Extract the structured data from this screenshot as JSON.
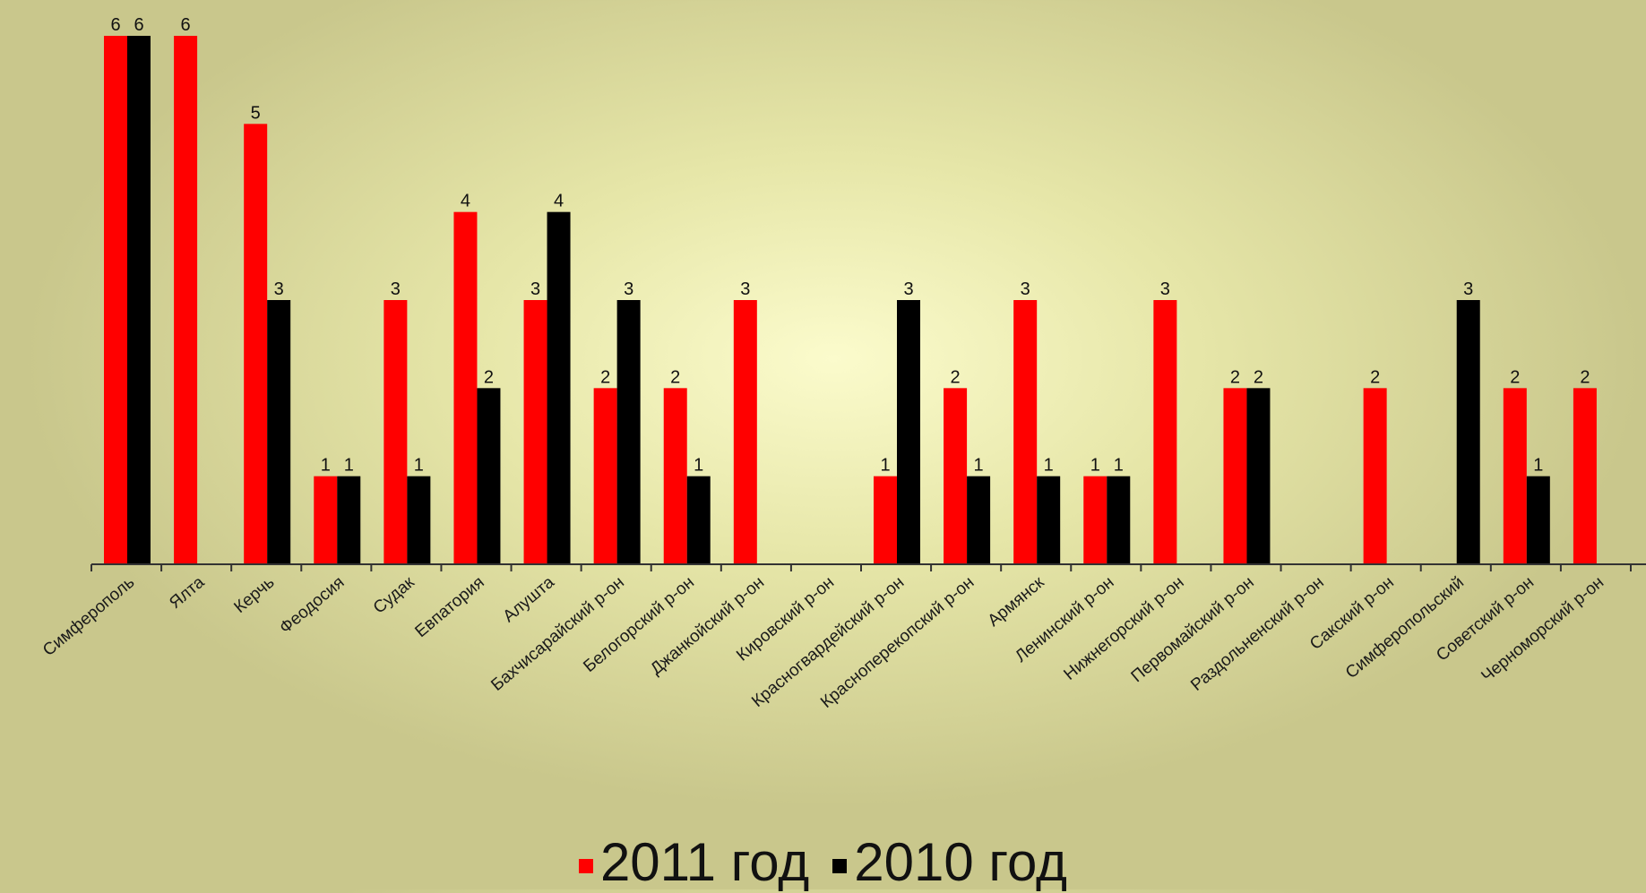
{
  "chart_data": {
    "type": "bar",
    "title": "",
    "xlabel": "",
    "ylabel": "",
    "ylim": [
      0,
      6
    ],
    "grid": false,
    "legend_position": "bottom",
    "categories": [
      "Симферополь",
      "Ялта",
      "Керчь",
      "Феодосия",
      "Судак",
      "Евпатория",
      "Алушта",
      "Бахчисарайский р-он",
      "Белогорский р-он",
      "Джанкойский р-он",
      "Кировский р-он",
      "Красногвардейский р-он",
      "Красноперекопский р-он",
      "Армянск",
      "Ленинский р-он",
      "Нижнегорский р-он",
      "Первомайский р-он",
      "Раздольненский р-он",
      "Сакский р-он",
      "Симферопольский",
      "Советский р-он",
      "Черноморский р-он"
    ],
    "series": [
      {
        "name": "2011 год",
        "color": "#ff0000",
        "values": [
          6,
          6,
          5,
          1,
          3,
          4,
          3,
          2,
          2,
          3,
          null,
          1,
          2,
          3,
          1,
          3,
          2,
          null,
          2,
          null,
          2,
          2
        ]
      },
      {
        "name": "2010 год",
        "color": "#000000",
        "values": [
          6,
          null,
          3,
          1,
          1,
          2,
          4,
          3,
          1,
          null,
          null,
          3,
          1,
          1,
          1,
          null,
          2,
          null,
          null,
          3,
          1,
          null
        ]
      }
    ]
  }
}
